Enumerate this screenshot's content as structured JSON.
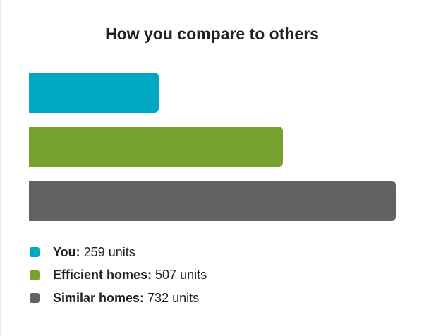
{
  "chart_data": {
    "type": "bar",
    "orientation": "horizontal",
    "title": "How you compare to others",
    "unit": "units",
    "categories": [
      "You",
      "Efficient homes",
      "Similar homes"
    ],
    "values": [
      259,
      507,
      732
    ],
    "colors": [
      "#00a8c4",
      "#78a22f",
      "#626262"
    ],
    "grid": false,
    "legend": {
      "placement": "bottom-left",
      "items": [
        {
          "name": "You:",
          "value": "259 units",
          "color": "#00a8c4"
        },
        {
          "name": "Efficient homes:",
          "value": "507 units",
          "color": "#78a22f"
        },
        {
          "name": "Similar homes:",
          "value": "732 units",
          "color": "#626262"
        }
      ]
    }
  }
}
